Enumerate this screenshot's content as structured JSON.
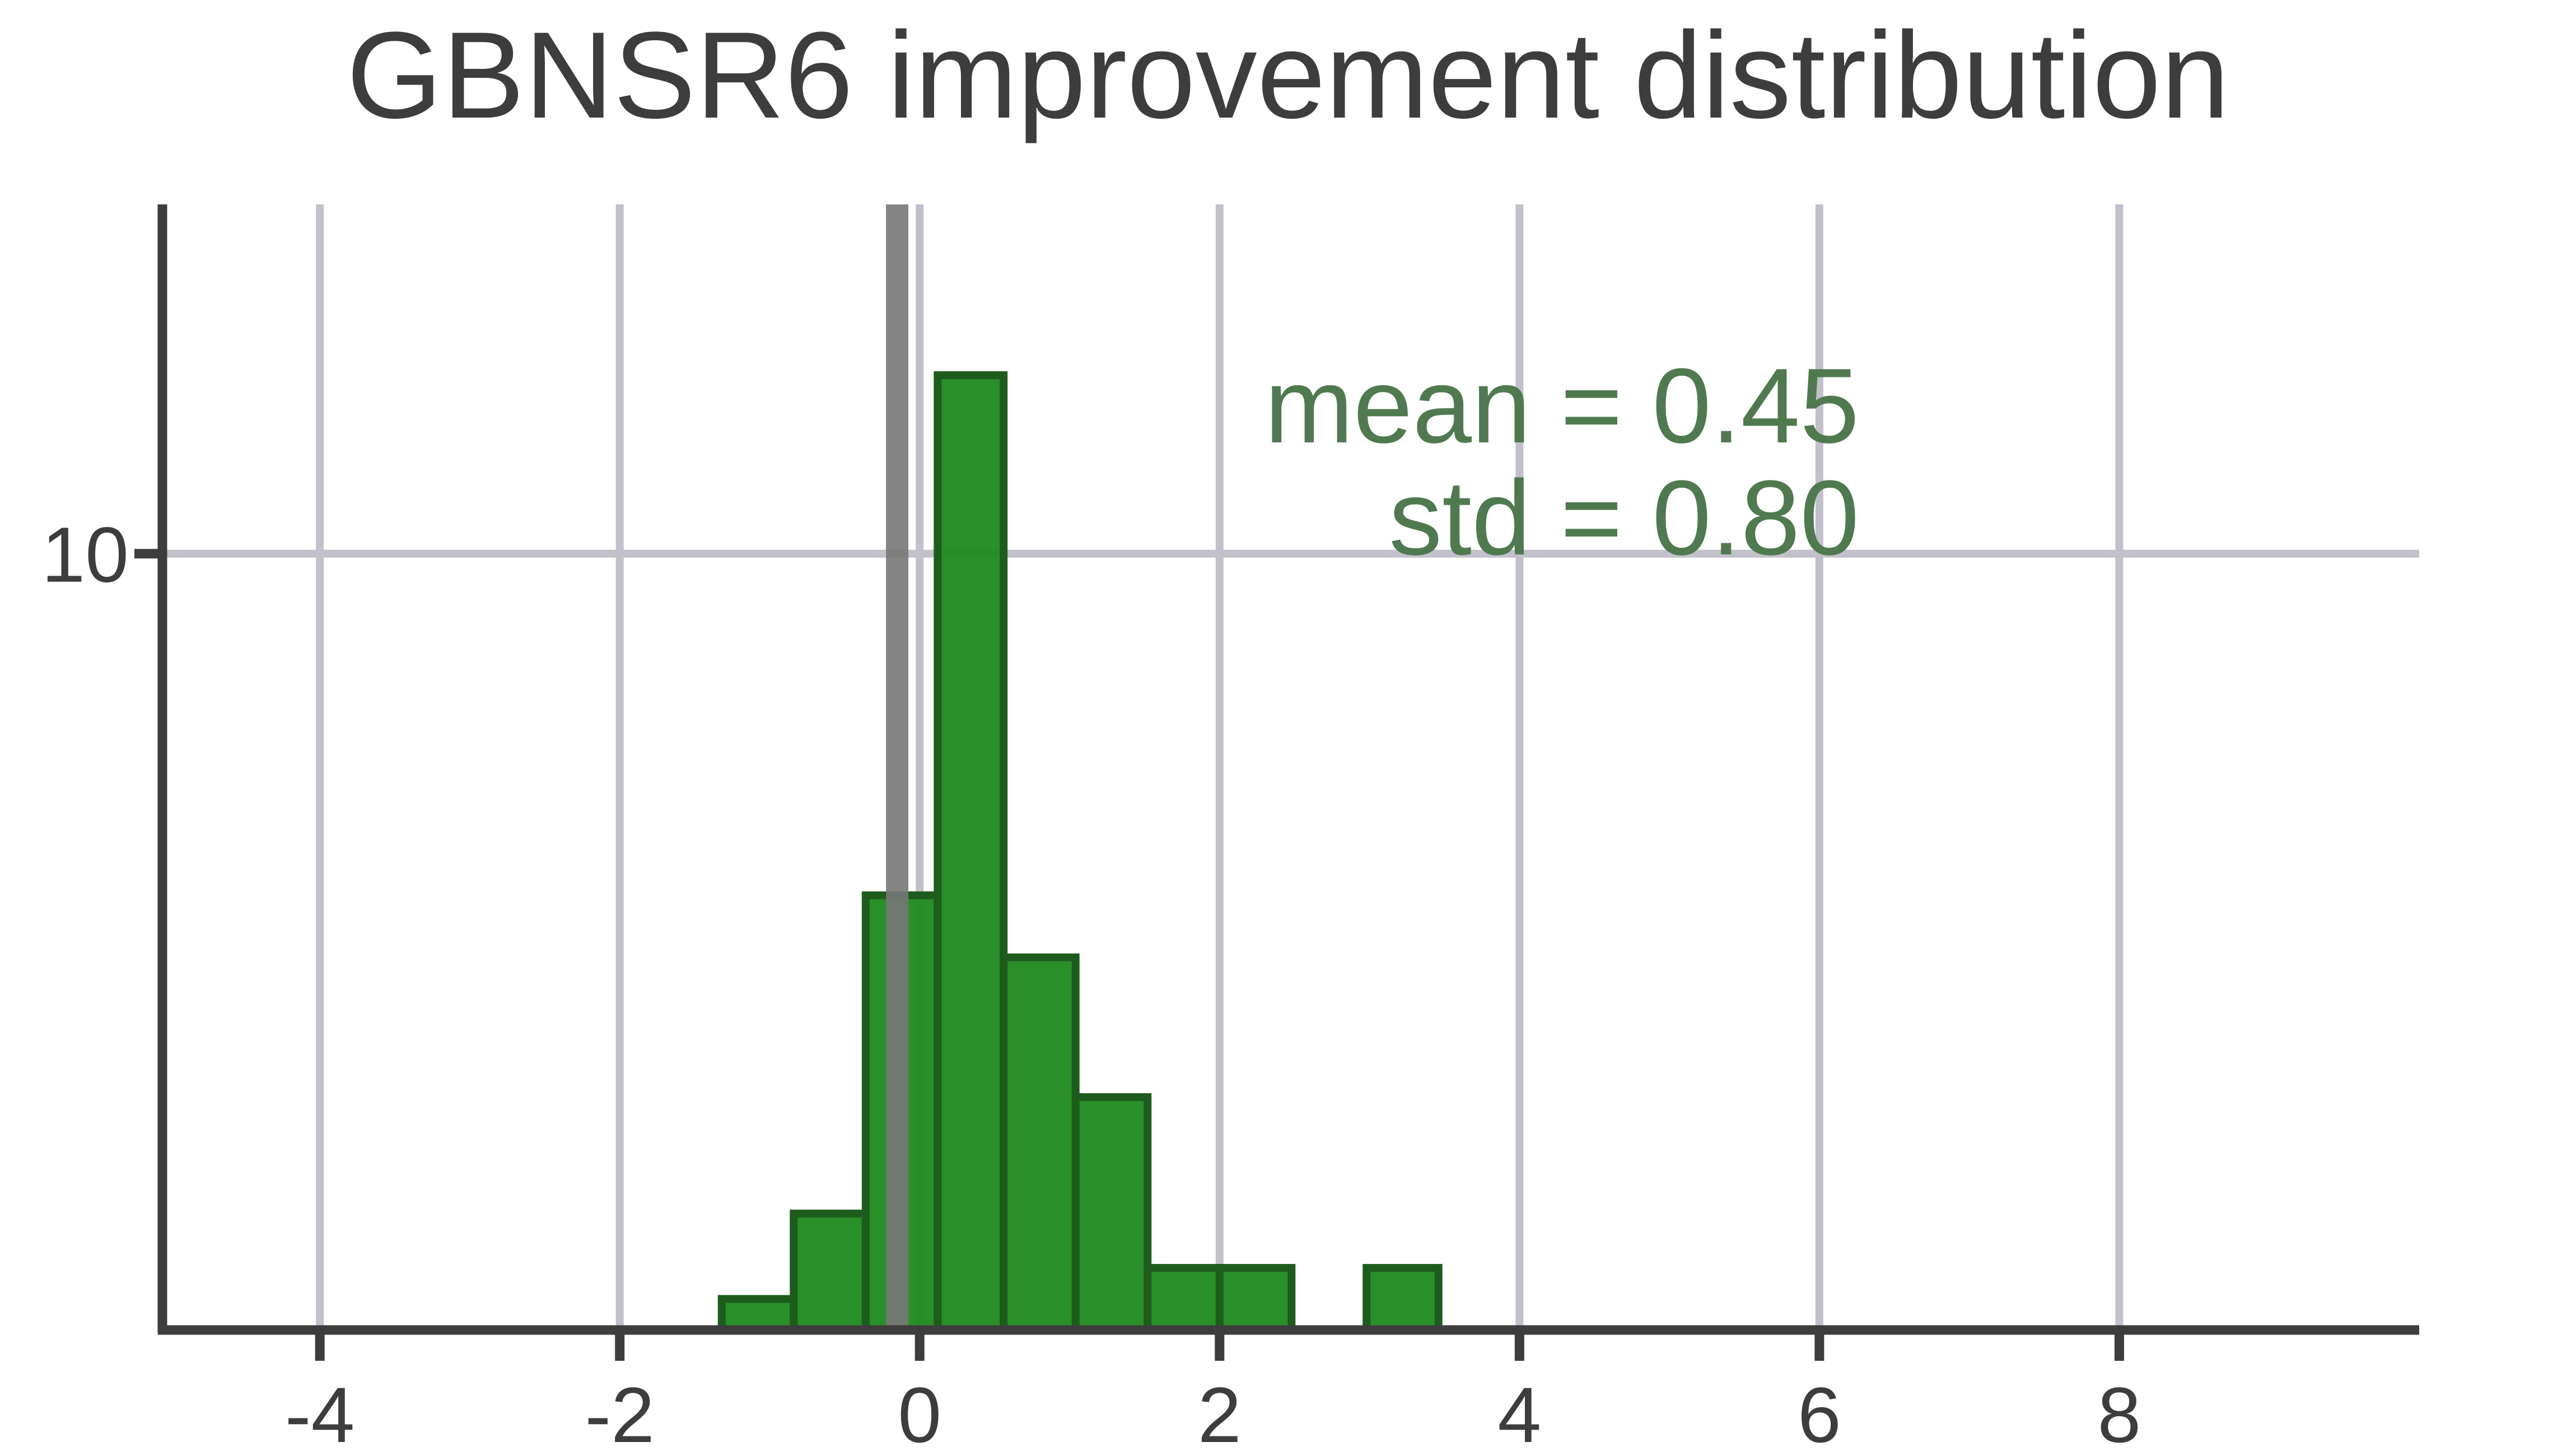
{
  "chart_data": {
    "type": "bar",
    "title": "GBNSR6 improvement distribution",
    "xlabel": "",
    "ylabel": "",
    "xlim": [
      -5.05,
      10
    ],
    "ylim": [
      0,
      14.5
    ],
    "x_ticks": [
      -4,
      -2,
      0,
      2,
      4,
      6,
      8
    ],
    "y_ticks": [
      10
    ],
    "grid": true,
    "bin_edges": [
      -1.32,
      -0.84,
      -0.36,
      0.12,
      0.56,
      1.04,
      1.52,
      2.0,
      2.48,
      2.98,
      3.46
    ],
    "values": [
      0.4,
      1.5,
      5.6,
      12.3,
      4.8,
      3.0,
      0.8,
      0.8,
      0,
      0.8
    ],
    "reference_line_x": -0.15,
    "colors": {
      "bar_fill": "#228b22",
      "bar_edge": "#1d5c1d",
      "grid": "#c2c0cb",
      "axis": "#3d3d3d",
      "reference_line": "#777777",
      "annotation": "#4f7a4f"
    },
    "annotations": {
      "mean": "mean = 0.45",
      "std": "std = 0.80"
    }
  }
}
